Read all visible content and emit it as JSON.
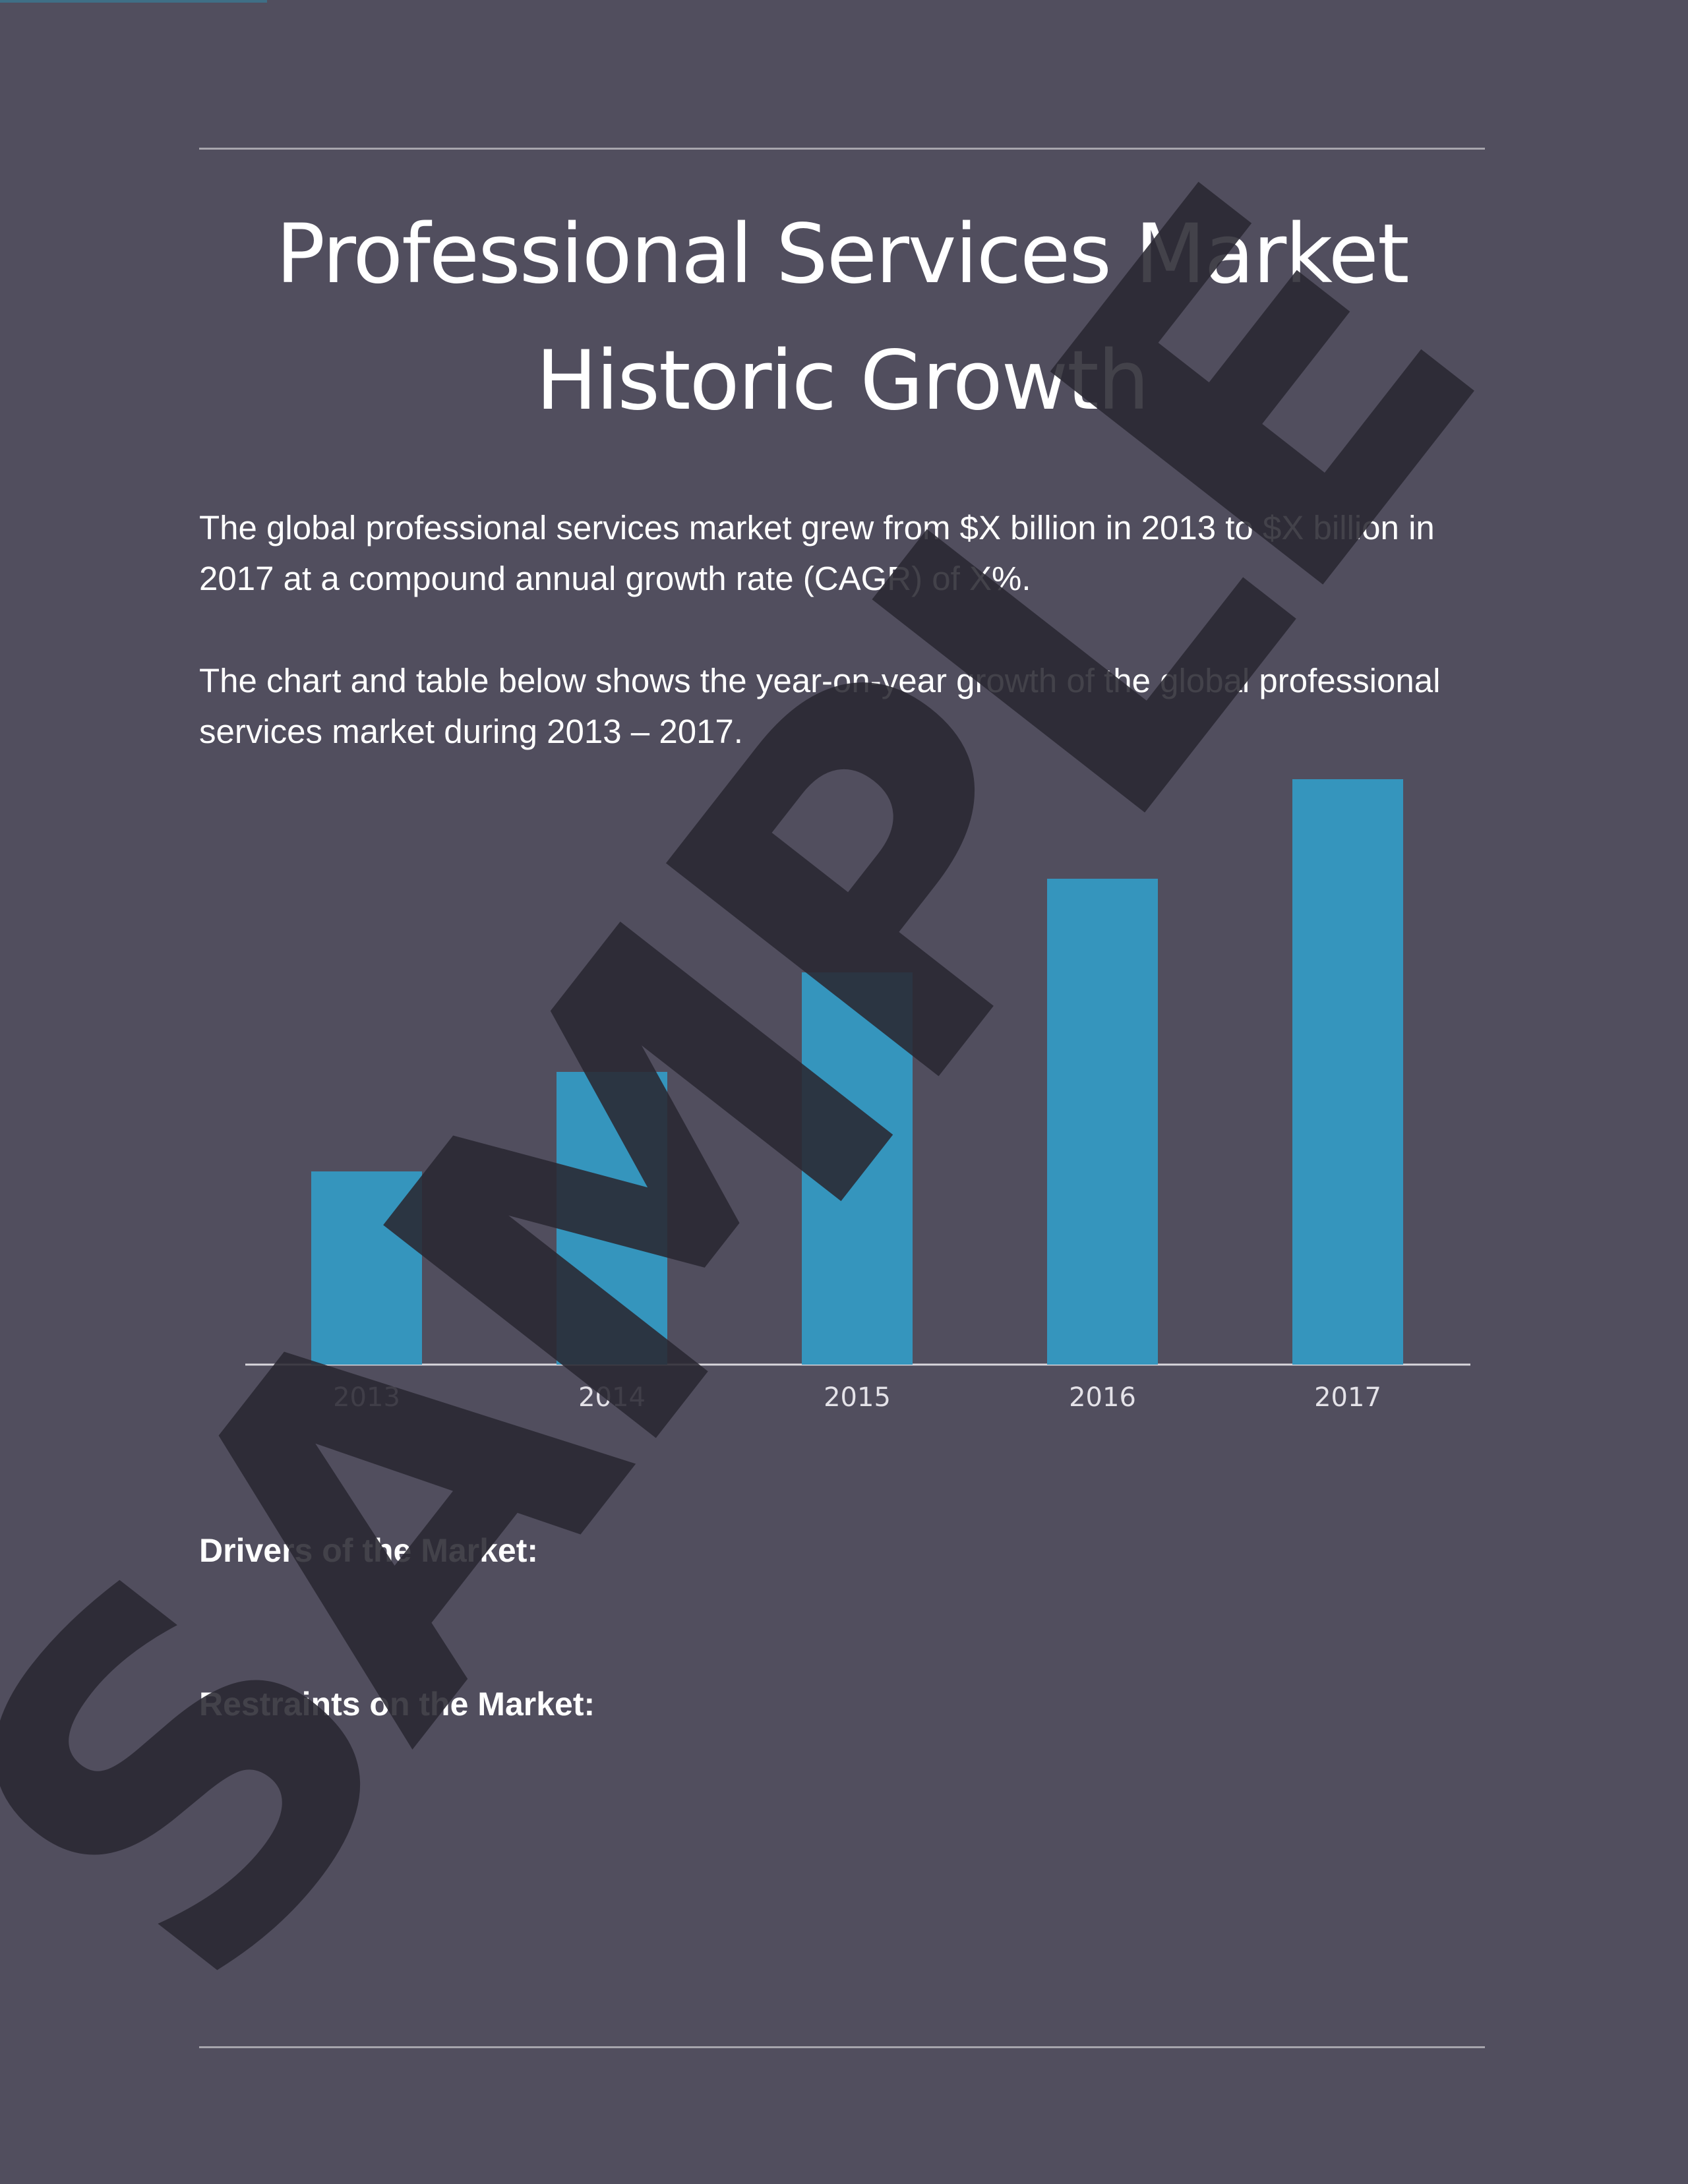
{
  "page": {
    "title_line1": "Professional Services Market",
    "title_line2": "Historic Growth",
    "paragraph1": "The global professional services market grew from $X billion in 2013 to $X billion in 2017 at a compound annual growth rate (CAGR) of X%.",
    "paragraph2": "The chart and table below shows the year-on-year growth of the global professional services market during 2013 – 2017.",
    "drivers_heading": "Drivers of the Market:",
    "restraints_heading": "Restraints on the Market:",
    "watermark": "SAMPLE"
  },
  "colors": {
    "background": "#514e5e",
    "bar": "#3595bd",
    "text": "#ffffff",
    "axis": "#d8d6dc",
    "watermark": "#2a2832"
  },
  "chart_data": {
    "type": "bar",
    "categories": [
      "2013",
      "2014",
      "2015",
      "2016",
      "2017"
    ],
    "values": [
      33,
      50,
      67,
      83,
      100
    ],
    "ylim": [
      0,
      100
    ],
    "grid": false,
    "title": "",
    "xlabel": "",
    "ylabel": ""
  }
}
